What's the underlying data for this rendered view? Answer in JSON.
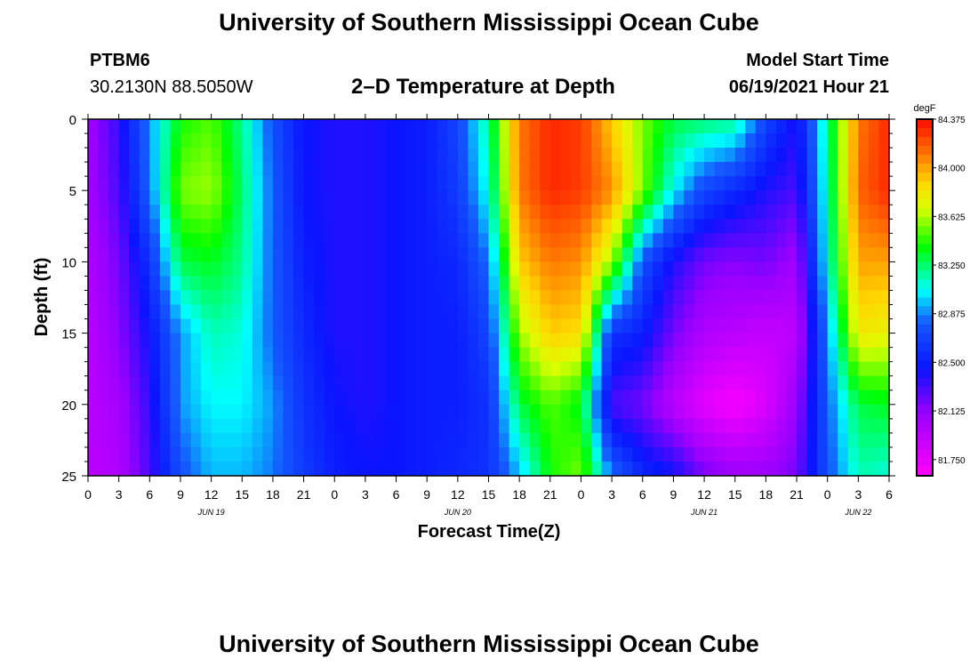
{
  "header": {
    "title": "University of Southern Mississippi Ocean Cube",
    "station": "PTBM6",
    "coords": "30.2130N  88.5050W",
    "subtitle": "2–D Temperature at Depth",
    "start_label": "Model Start Time",
    "start_value": "06/19/2021 Hour 21"
  },
  "footer": {
    "title": "University of Southern Mississippi Ocean Cube"
  },
  "chart_data": {
    "type": "heatmap",
    "xlabel": "Forecast Time(Z)",
    "ylabel": "Depth (ft)",
    "x_unit": "hours since 06/19 00Z",
    "xlim": [
      0,
      78
    ],
    "ylim": [
      0,
      25
    ],
    "y_ticks": [
      0,
      5,
      10,
      15,
      20,
      25
    ],
    "x_tick_labels": [
      "0",
      "3",
      "6",
      "9",
      "12",
      "15",
      "18",
      "21",
      "0",
      "3",
      "6",
      "9",
      "12",
      "15",
      "18",
      "21",
      "0",
      "3",
      "6",
      "9",
      "12",
      "15",
      "18",
      "21",
      "0",
      "3",
      "6"
    ],
    "date_labels": [
      {
        "label": "JUN 19",
        "x": 12
      },
      {
        "label": "JUN 20",
        "x": 36
      },
      {
        "label": "JUN 21",
        "x": 60
      },
      {
        "label": "JUN 22",
        "x": 75
      }
    ],
    "colorbar": {
      "unit": "degF",
      "ticks": [
        "84.375",
        "84.000",
        "83.625",
        "83.250",
        "82.875",
        "82.500",
        "82.125",
        "81.750"
      ],
      "vmin": 81.625,
      "vmax": 84.375
    },
    "depths_ft": [
      0,
      5,
      10,
      15,
      20,
      25
    ],
    "hours": [
      0,
      3,
      6,
      9,
      12,
      15,
      18,
      21,
      24,
      27,
      30,
      33,
      36,
      39,
      42,
      45,
      48,
      51,
      54,
      57,
      60,
      63,
      66,
      69,
      72,
      75,
      78
    ],
    "temperatures_degF": [
      [
        82.05,
        82.35,
        82.9,
        83.4,
        83.5,
        83.2,
        82.75,
        82.45,
        82.4,
        82.4,
        82.45,
        82.5,
        82.7,
        83.2,
        84.1,
        84.3,
        84.25,
        83.9,
        83.55,
        83.3,
        83.25,
        83.2,
        82.7,
        82.4,
        83.2,
        84.1,
        84.3
      ],
      [
        82.05,
        82.3,
        82.85,
        83.55,
        83.6,
        83.25,
        82.8,
        82.45,
        82.4,
        82.4,
        82.45,
        82.5,
        82.65,
        83.1,
        84.1,
        84.3,
        84.25,
        84.05,
        83.55,
        83.05,
        82.7,
        82.55,
        82.4,
        82.3,
        83.15,
        84.15,
        84.3
      ],
      [
        82.0,
        82.2,
        82.6,
        83.3,
        83.35,
        83.2,
        82.8,
        82.5,
        82.4,
        82.4,
        82.45,
        82.5,
        82.55,
        82.85,
        83.9,
        84.1,
        84.05,
        83.6,
        82.75,
        82.4,
        82.2,
        82.15,
        82.2,
        82.05,
        83.1,
        84.0,
        84.0
      ],
      [
        81.95,
        82.15,
        82.45,
        82.9,
        83.15,
        83.1,
        82.8,
        82.55,
        82.4,
        82.4,
        82.45,
        82.5,
        82.5,
        82.7,
        83.6,
        83.9,
        83.85,
        82.6,
        82.5,
        82.2,
        82.0,
        81.95,
        81.9,
        81.95,
        82.9,
        83.8,
        83.75
      ],
      [
        81.95,
        82.05,
        82.35,
        82.9,
        83.05,
        83.05,
        82.9,
        82.6,
        82.45,
        82.4,
        82.45,
        82.5,
        82.5,
        82.6,
        83.3,
        83.5,
        83.35,
        82.3,
        82.2,
        81.95,
        81.75,
        81.65,
        81.8,
        82.1,
        82.8,
        83.3,
        83.35
      ],
      [
        81.95,
        82.0,
        82.3,
        82.75,
        82.95,
        82.95,
        82.85,
        82.65,
        82.5,
        82.45,
        82.45,
        82.5,
        82.55,
        82.6,
        82.95,
        83.4,
        83.55,
        82.85,
        82.55,
        82.45,
        82.2,
        82.1,
        82.1,
        82.2,
        82.75,
        83.15,
        83.1
      ]
    ]
  }
}
